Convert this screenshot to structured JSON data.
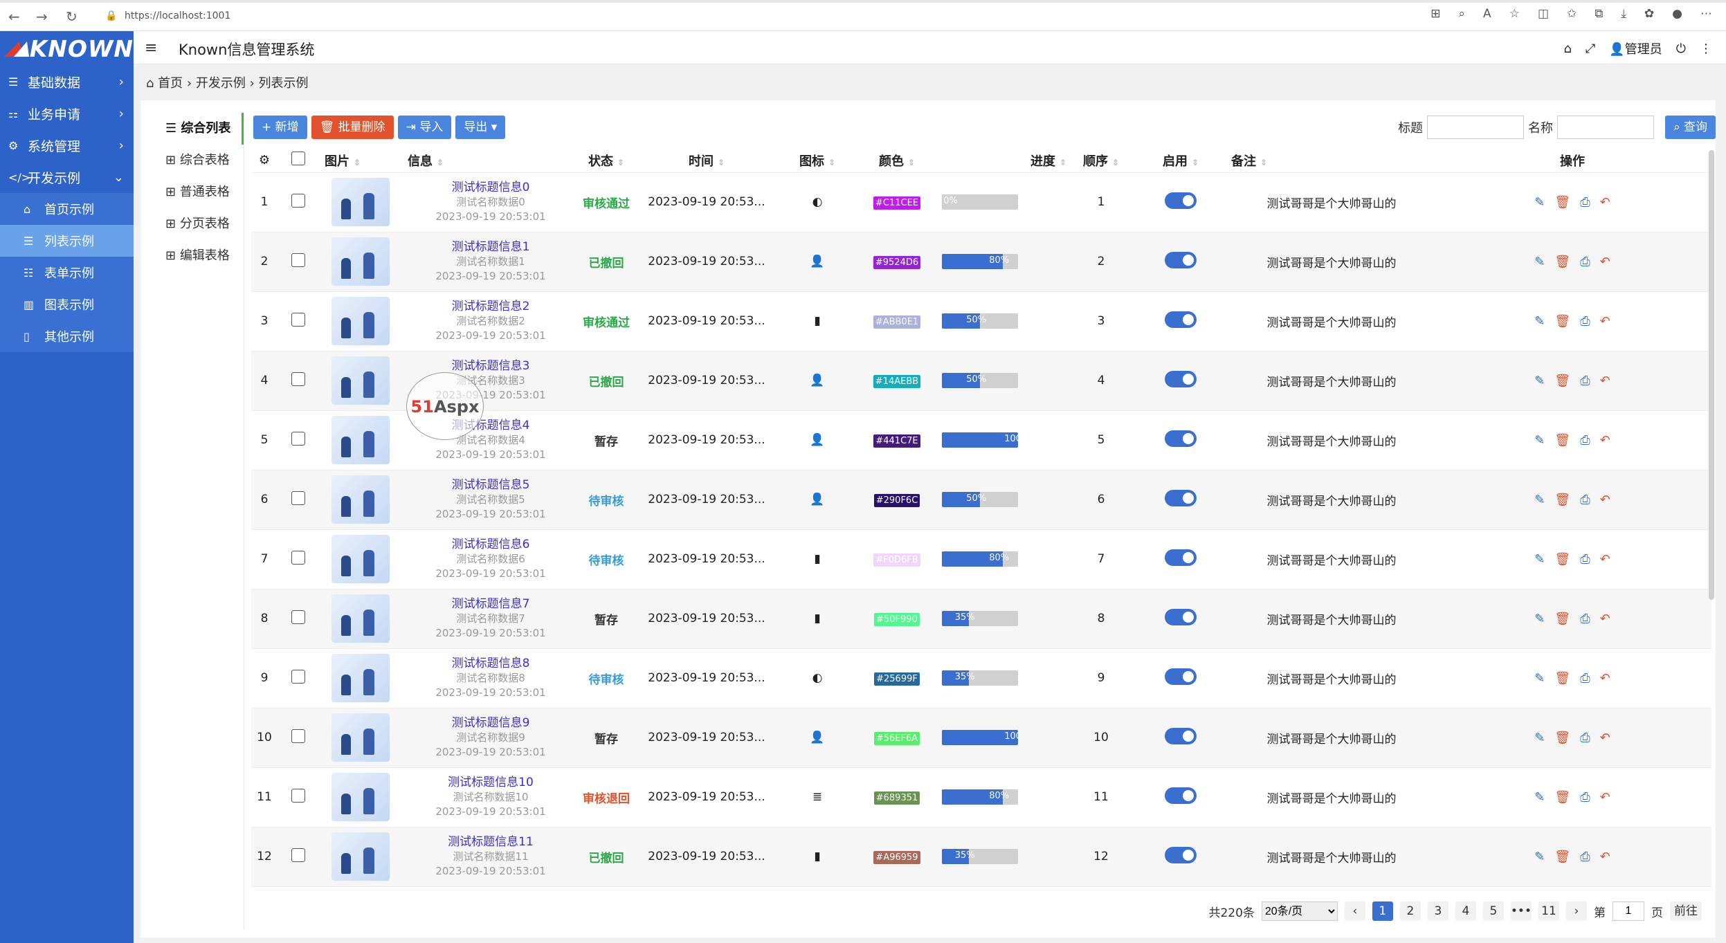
{
  "browser": {
    "url": "https://localhost:1001"
  },
  "app": {
    "logo": "KNOWN",
    "title": "Known信息管理系统",
    "user": "管理员"
  },
  "sidebar": {
    "items": [
      {
        "label": "基础数据",
        "icon": "database-icon"
      },
      {
        "label": "业务申请",
        "icon": "sitemap-icon"
      },
      {
        "label": "系统管理",
        "icon": "gears-icon"
      },
      {
        "label": "开发示例",
        "icon": "code-icon"
      }
    ],
    "sub": [
      {
        "label": "首页示例",
        "icon": "home-icon"
      },
      {
        "label": "列表示例",
        "icon": "list-icon"
      },
      {
        "label": "表单示例",
        "icon": "form-list-icon"
      },
      {
        "label": "图表示例",
        "icon": "bar-chart-icon"
      },
      {
        "label": "其他示例",
        "icon": "file-icon"
      }
    ]
  },
  "breadcrumb": {
    "home": "首页",
    "level1": "开发示例",
    "level2": "列表示例"
  },
  "tabs": [
    "综合列表",
    "综合表格",
    "普通表格",
    "分页表格",
    "编辑表格"
  ],
  "toolbar": {
    "add": "新增",
    "batch_delete": "批量删除",
    "import": "导入",
    "export": "导出"
  },
  "search": {
    "title_label": "标题",
    "name_label": "名称",
    "button": "查询"
  },
  "columns": {
    "pic": "图片",
    "info": "信息",
    "status": "状态",
    "time": "时间",
    "icon": "图标",
    "color": "颜色",
    "progress": "进度",
    "order": "顺序",
    "enabled": "启用",
    "remark": "备注",
    "ops": "操作"
  },
  "rows": [
    {
      "no": "1",
      "title": "测试标题信息0",
      "name": "测试名称数据0",
      "date": "2023-09-19 20:53:01",
      "status": "审核通过",
      "status_color": "#2aa84a",
      "time": "2023-09-19 20:53...",
      "icon": "toggle-icon",
      "icon_glyph": "◐",
      "color": "#C11CEE",
      "progress": 0,
      "progress_label": "0%",
      "order": "1",
      "remark": "测试哥哥是个大帅哥山的"
    },
    {
      "no": "2",
      "title": "测试标题信息1",
      "name": "测试名称数据1",
      "date": "2023-09-19 20:53:01",
      "status": "已撤回",
      "status_color": "#2aa84a",
      "time": "2023-09-19 20:53...",
      "icon": "user-icon",
      "icon_glyph": "👤",
      "color": "#9524D6",
      "progress": 80,
      "progress_label": "80%",
      "order": "2",
      "remark": "测试哥哥是个大帅哥山的"
    },
    {
      "no": "3",
      "title": "测试标题信息2",
      "name": "测试名称数据2",
      "date": "2023-09-19 20:53:01",
      "status": "审核通过",
      "status_color": "#2aa84a",
      "time": "2023-09-19 20:53...",
      "icon": "file-icon",
      "icon_glyph": "▮",
      "color": "#ABB0E1",
      "progress": 50,
      "progress_label": "50%",
      "order": "3",
      "remark": "测试哥哥是个大帅哥山的"
    },
    {
      "no": "4",
      "title": "测试标题信息3",
      "name": "测试名称数据3",
      "date": "2023-09-19 20:53:01",
      "status": "已撤回",
      "status_color": "#2aa84a",
      "time": "2023-09-19 20:53...",
      "icon": "user-icon",
      "icon_glyph": "👤",
      "color": "#14AEBB",
      "progress": 50,
      "progress_label": "50%",
      "order": "4",
      "remark": "测试哥哥是个大帅哥山的"
    },
    {
      "no": "5",
      "title": "测试标题信息4",
      "name": "测试名称数据4",
      "date": "2023-09-19 20:53:01",
      "status": "暂存",
      "status_color": "#333333",
      "time": "2023-09-19 20:53...",
      "icon": "user-icon",
      "icon_glyph": "👤",
      "color": "#441C7E",
      "progress": 100,
      "progress_label": "100%",
      "order": "5",
      "remark": "测试哥哥是个大帅哥山的"
    },
    {
      "no": "6",
      "title": "测试标题信息5",
      "name": "测试名称数据5",
      "date": "2023-09-19 20:53:01",
      "status": "待审核",
      "status_color": "#3a9bd6",
      "time": "2023-09-19 20:53...",
      "icon": "user-icon",
      "icon_glyph": "👤",
      "color": "#290F6C",
      "progress": 50,
      "progress_label": "50%",
      "order": "6",
      "remark": "测试哥哥是个大帅哥山的"
    },
    {
      "no": "7",
      "title": "测试标题信息6",
      "name": "测试名称数据6",
      "date": "2023-09-19 20:53:01",
      "status": "待审核",
      "status_color": "#3a9bd6",
      "time": "2023-09-19 20:53...",
      "icon": "file-icon",
      "icon_glyph": "▮",
      "color": "#F0D6FB",
      "progress": 80,
      "progress_label": "80%",
      "order": "7",
      "remark": "测试哥哥是个大帅哥山的"
    },
    {
      "no": "8",
      "title": "测试标题信息7",
      "name": "测试名称数据7",
      "date": "2023-09-19 20:53:01",
      "status": "暂存",
      "status_color": "#333333",
      "time": "2023-09-19 20:53...",
      "icon": "file-icon",
      "icon_glyph": "▮",
      "color": "#50F990",
      "progress": 35,
      "progress_label": "35%",
      "order": "8",
      "remark": "测试哥哥是个大帅哥山的"
    },
    {
      "no": "9",
      "title": "测试标题信息8",
      "name": "测试名称数据8",
      "date": "2023-09-19 20:53:01",
      "status": "待审核",
      "status_color": "#3a9bd6",
      "time": "2023-09-19 20:53...",
      "icon": "toggle-icon",
      "icon_glyph": "◐",
      "color": "#25699F",
      "progress": 35,
      "progress_label": "35%",
      "order": "9",
      "remark": "测试哥哥是个大帅哥山的"
    },
    {
      "no": "10",
      "title": "测试标题信息9",
      "name": "测试名称数据9",
      "date": "2023-09-19 20:53:01",
      "status": "暂存",
      "status_color": "#333333",
      "time": "2023-09-19 20:53...",
      "icon": "user-icon",
      "icon_glyph": "👤",
      "color": "#56EF6A",
      "progress": 100,
      "progress_label": "100%",
      "order": "10",
      "remark": "测试哥哥是个大帅哥山的"
    },
    {
      "no": "11",
      "title": "测试标题信息10",
      "name": "测试名称数据10",
      "date": "2023-09-19 20:53:01",
      "status": "审核退回",
      "status_color": "#e2522c",
      "time": "2023-09-19 20:53...",
      "icon": "list-icon",
      "icon_glyph": "≣",
      "color": "#689351",
      "progress": 80,
      "progress_label": "80%",
      "order": "11",
      "remark": "测试哥哥是个大帅哥山的"
    },
    {
      "no": "12",
      "title": "测试标题信息11",
      "name": "测试名称数据11",
      "date": "2023-09-19 20:53:01",
      "status": "已撤回",
      "status_color": "#2aa84a",
      "time": "2023-09-19 20:53...",
      "icon": "file-icon",
      "icon_glyph": "▮",
      "color": "#A96959",
      "progress": 35,
      "progress_label": "35%",
      "order": "12",
      "remark": "测试哥哥是个大帅哥山的"
    }
  ],
  "pager": {
    "total": "共220条",
    "page_size": "20条/页",
    "pages": [
      "1",
      "2",
      "3",
      "4",
      "5",
      "•••",
      "11"
    ],
    "goto_prefix": "第",
    "goto_value": "1",
    "goto_suffix": "页",
    "goto_btn": "前往"
  },
  "watermark": {
    "brand_a": "51",
    "brand_b": "Aspx"
  }
}
